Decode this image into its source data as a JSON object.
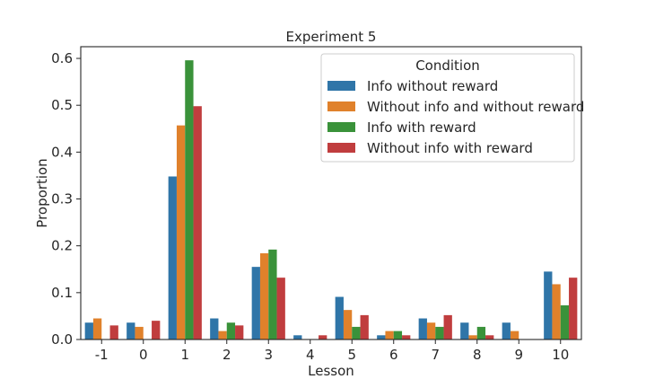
{
  "chart_data": {
    "type": "bar",
    "title": "Experiment 5",
    "xlabel": "Lesson",
    "ylabel": "Proportion",
    "ylim": [
      0,
      0.625
    ],
    "yticks": [
      "0.0",
      "0.1",
      "0.2",
      "0.3",
      "0.4",
      "0.5",
      "0.6"
    ],
    "categories": [
      "-1",
      "0",
      "1",
      "2",
      "3",
      "4",
      "5",
      "6",
      "7",
      "8",
      "9",
      "10"
    ],
    "grid": false,
    "legend": {
      "title": "Condition",
      "placement": "top-right"
    },
    "series": [
      {
        "name": "Info without reward",
        "color": "#2f75a8",
        "values": [
          0.036,
          0.036,
          0.348,
          0.045,
          0.155,
          0.009,
          0.091,
          0.009,
          0.045,
          0.036,
          0.036,
          0.145
        ]
      },
      {
        "name": "Without info and without reward",
        "color": "#e0812b",
        "values": [
          0.045,
          0.027,
          0.457,
          0.018,
          0.184,
          0.0,
          0.063,
          0.018,
          0.036,
          0.009,
          0.018,
          0.118
        ]
      },
      {
        "name": "Info with reward",
        "color": "#3a923a",
        "values": [
          0.0,
          0.0,
          0.596,
          0.036,
          0.192,
          0.0,
          0.027,
          0.018,
          0.027,
          0.027,
          0.0,
          0.073
        ]
      },
      {
        "name": "Without info with reward",
        "color": "#c03d3e",
        "values": [
          0.03,
          0.04,
          0.498,
          0.03,
          0.132,
          0.009,
          0.052,
          0.009,
          0.052,
          0.009,
          0.0,
          0.132
        ]
      }
    ]
  }
}
